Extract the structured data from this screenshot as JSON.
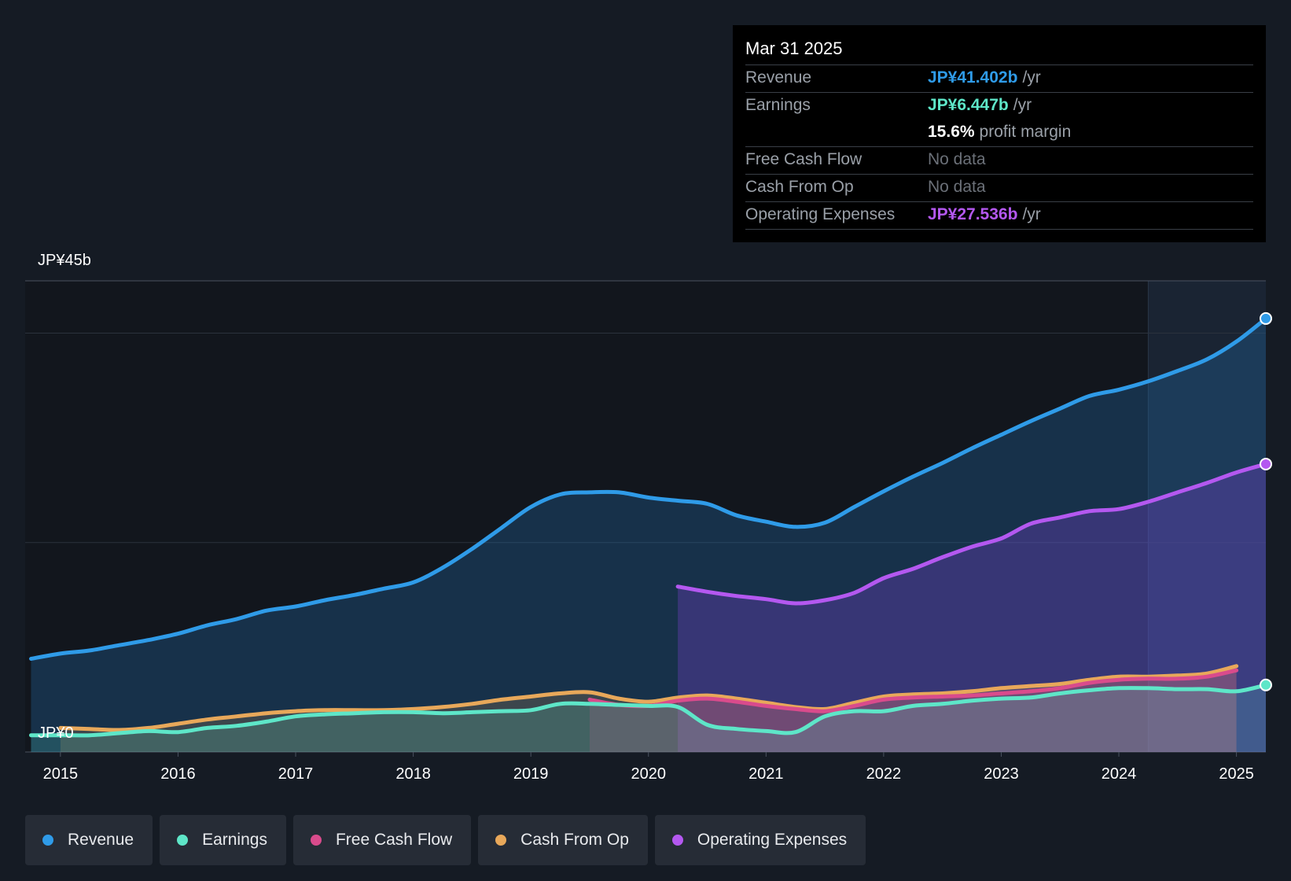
{
  "tooltip": {
    "date": "Mar 31 2025",
    "rows": [
      {
        "label": "Revenue",
        "value": "JP¥41.402b",
        "unit": "/yr",
        "color": "#2f9be8"
      },
      {
        "label": "Earnings",
        "value": "JP¥6.447b",
        "unit": "/yr",
        "color": "#5ee6c8"
      },
      {
        "label": "",
        "value": "15.6%",
        "unit": "profit margin",
        "color": "#ffffff"
      },
      {
        "label": "Free Cash Flow",
        "value": "No data"
      },
      {
        "label": "Cash From Op",
        "value": "No data"
      },
      {
        "label": "Operating Expenses",
        "value": "JP¥27.536b",
        "unit": "/yr",
        "color": "#b458f0"
      }
    ]
  },
  "chart_data": {
    "type": "area",
    "y_top_label": "JP¥45b",
    "y_bottom_label": "JP¥0",
    "ylim": [
      0,
      45
    ],
    "xlim": [
      2014.7,
      2025.25
    ],
    "x_ticks": [
      "2015",
      "2016",
      "2017",
      "2018",
      "2019",
      "2020",
      "2021",
      "2022",
      "2023",
      "2024",
      "2025"
    ],
    "highlight_start": 2024.25,
    "series": [
      {
        "name": "Revenue",
        "color": "#2f9be8",
        "points": [
          [
            2014.75,
            8.9
          ],
          [
            2015.0,
            9.4
          ],
          [
            2015.25,
            9.7
          ],
          [
            2015.5,
            10.2
          ],
          [
            2015.75,
            10.7
          ],
          [
            2016.0,
            11.3
          ],
          [
            2016.25,
            12.1
          ],
          [
            2016.5,
            12.7
          ],
          [
            2016.75,
            13.5
          ],
          [
            2017.0,
            13.9
          ],
          [
            2017.25,
            14.5
          ],
          [
            2017.5,
            15.0
          ],
          [
            2017.75,
            15.6
          ],
          [
            2018.0,
            16.2
          ],
          [
            2018.25,
            17.6
          ],
          [
            2018.5,
            19.4
          ],
          [
            2018.75,
            21.4
          ],
          [
            2019.0,
            23.4
          ],
          [
            2019.25,
            24.6
          ],
          [
            2019.5,
            24.8
          ],
          [
            2019.75,
            24.8
          ],
          [
            2020.0,
            24.3
          ],
          [
            2020.25,
            24.0
          ],
          [
            2020.5,
            23.7
          ],
          [
            2020.75,
            22.6
          ],
          [
            2021.0,
            22.0
          ],
          [
            2021.25,
            21.5
          ],
          [
            2021.5,
            21.9
          ],
          [
            2021.75,
            23.4
          ],
          [
            2022.0,
            24.9
          ],
          [
            2022.25,
            26.3
          ],
          [
            2022.5,
            27.6
          ],
          [
            2022.75,
            29.0
          ],
          [
            2023.0,
            30.3
          ],
          [
            2023.25,
            31.6
          ],
          [
            2023.5,
            32.8
          ],
          [
            2023.75,
            34.0
          ],
          [
            2024.0,
            34.6
          ],
          [
            2024.25,
            35.4
          ],
          [
            2024.5,
            36.4
          ],
          [
            2024.75,
            37.5
          ],
          [
            2025.0,
            39.2
          ],
          [
            2025.25,
            41.4
          ]
        ]
      },
      {
        "name": "Earnings",
        "color": "#5ee6c8",
        "points": [
          [
            2014.75,
            1.6
          ],
          [
            2015.0,
            1.6
          ],
          [
            2015.25,
            1.6
          ],
          [
            2015.5,
            1.8
          ],
          [
            2015.75,
            2.0
          ],
          [
            2016.0,
            1.9
          ],
          [
            2016.25,
            2.3
          ],
          [
            2016.5,
            2.5
          ],
          [
            2016.75,
            2.9
          ],
          [
            2017.0,
            3.4
          ],
          [
            2017.25,
            3.6
          ],
          [
            2017.5,
            3.7
          ],
          [
            2017.75,
            3.8
          ],
          [
            2018.0,
            3.8
          ],
          [
            2018.25,
            3.7
          ],
          [
            2018.5,
            3.8
          ],
          [
            2018.75,
            3.9
          ],
          [
            2019.0,
            4.0
          ],
          [
            2019.25,
            4.6
          ],
          [
            2019.5,
            4.6
          ],
          [
            2019.75,
            4.5
          ],
          [
            2020.0,
            4.4
          ],
          [
            2020.25,
            4.3
          ],
          [
            2020.5,
            2.6
          ],
          [
            2020.75,
            2.2
          ],
          [
            2021.0,
            2.0
          ],
          [
            2021.25,
            1.9
          ],
          [
            2021.5,
            3.4
          ],
          [
            2021.75,
            3.9
          ],
          [
            2022.0,
            3.9
          ],
          [
            2022.25,
            4.4
          ],
          [
            2022.5,
            4.6
          ],
          [
            2022.75,
            4.9
          ],
          [
            2023.0,
            5.1
          ],
          [
            2023.25,
            5.2
          ],
          [
            2023.5,
            5.6
          ],
          [
            2023.75,
            5.9
          ],
          [
            2024.0,
            6.1
          ],
          [
            2024.25,
            6.1
          ],
          [
            2024.5,
            6.0
          ],
          [
            2024.75,
            6.0
          ],
          [
            2025.0,
            5.8
          ],
          [
            2025.25,
            6.4
          ]
        ]
      },
      {
        "name": "Free Cash Flow",
        "color": "#d94b8c",
        "points": [
          [
            2019.5,
            5.0
          ],
          [
            2019.75,
            4.5
          ],
          [
            2020.0,
            4.4
          ],
          [
            2020.25,
            4.9
          ],
          [
            2020.5,
            5.1
          ],
          [
            2020.75,
            4.8
          ],
          [
            2021.0,
            4.4
          ],
          [
            2021.25,
            4.1
          ],
          [
            2021.5,
            3.9
          ],
          [
            2021.75,
            4.4
          ],
          [
            2022.0,
            5.0
          ],
          [
            2022.25,
            5.2
          ],
          [
            2022.5,
            5.3
          ],
          [
            2022.75,
            5.4
          ],
          [
            2023.0,
            5.6
          ],
          [
            2023.25,
            5.8
          ],
          [
            2023.5,
            6.1
          ],
          [
            2023.75,
            6.6
          ],
          [
            2024.0,
            6.9
          ],
          [
            2024.25,
            7.0
          ],
          [
            2024.5,
            7.0
          ],
          [
            2024.75,
            7.2
          ],
          [
            2025.0,
            7.8
          ]
        ]
      },
      {
        "name": "Cash From Op",
        "color": "#e8a85a",
        "points": [
          [
            2015.0,
            2.3
          ],
          [
            2015.25,
            2.2
          ],
          [
            2015.5,
            2.1
          ],
          [
            2015.75,
            2.3
          ],
          [
            2016.0,
            2.7
          ],
          [
            2016.25,
            3.1
          ],
          [
            2016.5,
            3.4
          ],
          [
            2016.75,
            3.7
          ],
          [
            2017.0,
            3.9
          ],
          [
            2017.25,
            4.0
          ],
          [
            2017.5,
            4.0
          ],
          [
            2017.75,
            4.0
          ],
          [
            2018.0,
            4.1
          ],
          [
            2018.25,
            4.3
          ],
          [
            2018.5,
            4.6
          ],
          [
            2018.75,
            5.0
          ],
          [
            2019.0,
            5.3
          ],
          [
            2019.25,
            5.6
          ],
          [
            2019.5,
            5.7
          ],
          [
            2019.75,
            5.1
          ],
          [
            2020.0,
            4.8
          ],
          [
            2020.25,
            5.2
          ],
          [
            2020.5,
            5.4
          ],
          [
            2020.75,
            5.1
          ],
          [
            2021.0,
            4.7
          ],
          [
            2021.25,
            4.3
          ],
          [
            2021.5,
            4.1
          ],
          [
            2021.75,
            4.7
          ],
          [
            2022.0,
            5.3
          ],
          [
            2022.25,
            5.5
          ],
          [
            2022.5,
            5.6
          ],
          [
            2022.75,
            5.8
          ],
          [
            2023.0,
            6.1
          ],
          [
            2023.25,
            6.3
          ],
          [
            2023.5,
            6.5
          ],
          [
            2023.75,
            6.9
          ],
          [
            2024.0,
            7.2
          ],
          [
            2024.25,
            7.2
          ],
          [
            2024.5,
            7.3
          ],
          [
            2024.75,
            7.5
          ],
          [
            2025.0,
            8.2
          ]
        ]
      },
      {
        "name": "Operating Expenses",
        "color": "#b458f0",
        "points": [
          [
            2020.25,
            15.8
          ],
          [
            2020.5,
            15.3
          ],
          [
            2020.75,
            14.9
          ],
          [
            2021.0,
            14.6
          ],
          [
            2021.25,
            14.2
          ],
          [
            2021.5,
            14.5
          ],
          [
            2021.75,
            15.2
          ],
          [
            2022.0,
            16.6
          ],
          [
            2022.25,
            17.5
          ],
          [
            2022.5,
            18.6
          ],
          [
            2022.75,
            19.6
          ],
          [
            2023.0,
            20.4
          ],
          [
            2023.25,
            21.8
          ],
          [
            2023.5,
            22.4
          ],
          [
            2023.75,
            23.0
          ],
          [
            2024.0,
            23.2
          ],
          [
            2024.25,
            23.9
          ],
          [
            2024.5,
            24.8
          ],
          [
            2024.75,
            25.7
          ],
          [
            2025.0,
            26.7
          ],
          [
            2025.25,
            27.5
          ]
        ]
      }
    ]
  },
  "legend": [
    {
      "label": "Revenue",
      "color": "#2f9be8"
    },
    {
      "label": "Earnings",
      "color": "#5ee6c8"
    },
    {
      "label": "Free Cash Flow",
      "color": "#d94b8c"
    },
    {
      "label": "Cash From Op",
      "color": "#e8a85a"
    },
    {
      "label": "Operating Expenses",
      "color": "#b458f0"
    }
  ]
}
